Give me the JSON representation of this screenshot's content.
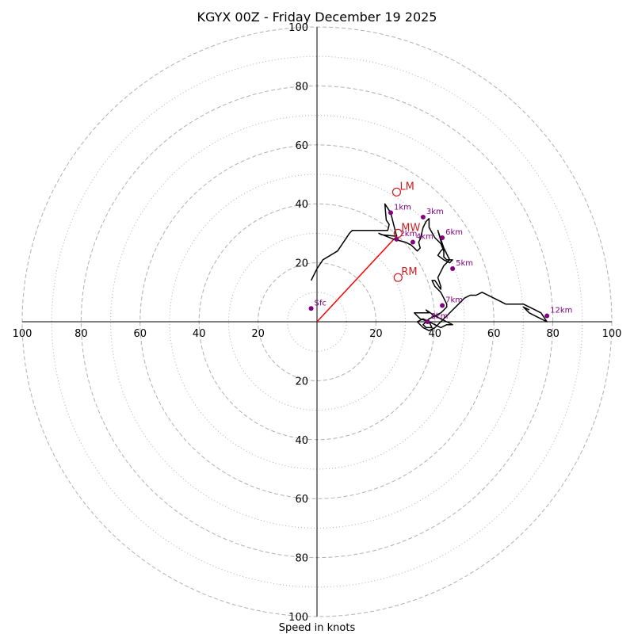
{
  "chart_data": {
    "type": "hodograph",
    "title": "KGYX 00Z - Friday December 19 2025",
    "xlabel": "Speed in knots",
    "axis_range": [
      -100,
      100
    ],
    "ticks": [
      {
        "value": -100,
        "label": "100"
      },
      {
        "value": -80,
        "label": "80"
      },
      {
        "value": -60,
        "label": "60"
      },
      {
        "value": -40,
        "label": "40"
      },
      {
        "value": -20,
        "label": "20"
      },
      {
        "value": 20,
        "label": "20"
      },
      {
        "value": 40,
        "label": "40"
      },
      {
        "value": 60,
        "label": "60"
      },
      {
        "value": 80,
        "label": "80"
      },
      {
        "value": 100,
        "label": "100"
      }
    ],
    "rings_dashed": [
      20,
      40,
      60,
      80,
      100
    ],
    "rings_dotted": [
      10,
      30,
      50,
      70,
      90
    ],
    "wind_profile": [
      [
        -2,
        14
      ],
      [
        0,
        18
      ],
      [
        2,
        21
      ],
      [
        7,
        24
      ],
      [
        11,
        30
      ],
      [
        12,
        31
      ],
      [
        24,
        31
      ],
      [
        24.5,
        33
      ],
      [
        23.5,
        34.5
      ],
      [
        23,
        40
      ],
      [
        25,
        37
      ],
      [
        27,
        29
      ],
      [
        22,
        29.5
      ],
      [
        21,
        30
      ],
      [
        26,
        28
      ],
      [
        30,
        27
      ],
      [
        32,
        26
      ],
      [
        34,
        24
      ],
      [
        35,
        25
      ],
      [
        34.5,
        27
      ],
      [
        35,
        28
      ],
      [
        36,
        32
      ],
      [
        37,
        34
      ],
      [
        38,
        35
      ],
      [
        38,
        32
      ],
      [
        40,
        28.5
      ],
      [
        42,
        26.5
      ],
      [
        43,
        24
      ],
      [
        43,
        22
      ],
      [
        44,
        21
      ],
      [
        46,
        21
      ],
      [
        45,
        20
      ],
      [
        43,
        21
      ],
      [
        41,
        22.5
      ],
      [
        42,
        24
      ],
      [
        43,
        25
      ],
      [
        42,
        28
      ],
      [
        41,
        31
      ],
      [
        42,
        27.5
      ],
      [
        43,
        25
      ],
      [
        45,
        21
      ],
      [
        43,
        19
      ],
      [
        41,
        15
      ],
      [
        42,
        12
      ],
      [
        42,
        11
      ],
      [
        40,
        14
      ],
      [
        39,
        14
      ],
      [
        40,
        12
      ],
      [
        42,
        10
      ],
      [
        43,
        8
      ],
      [
        44,
        6
      ],
      [
        44,
        5
      ],
      [
        43,
        4
      ],
      [
        42,
        3
      ],
      [
        40,
        2
      ],
      [
        38,
        1
      ],
      [
        37,
        0
      ],
      [
        36,
        -1
      ],
      [
        37,
        -2
      ],
      [
        39,
        -2
      ],
      [
        38,
        0
      ],
      [
        35,
        1
      ],
      [
        34,
        2
      ],
      [
        33,
        3
      ],
      [
        38,
        3
      ],
      [
        37,
        4
      ],
      [
        40,
        2
      ],
      [
        42,
        1
      ],
      [
        44,
        0
      ],
      [
        46,
        -1
      ],
      [
        44,
        -1
      ],
      [
        42,
        -2
      ],
      [
        40,
        -1
      ],
      [
        38,
        0
      ],
      [
        36,
        1
      ],
      [
        34,
        0
      ],
      [
        36,
        -2
      ],
      [
        38,
        -3
      ],
      [
        40,
        -2
      ],
      [
        42,
        0
      ],
      [
        44,
        2
      ],
      [
        46,
        4
      ],
      [
        48,
        6
      ],
      [
        50,
        8
      ],
      [
        52,
        9
      ],
      [
        54,
        9
      ],
      [
        56,
        10
      ],
      [
        60,
        8
      ],
      [
        64,
        6
      ],
      [
        68,
        6
      ],
      [
        70,
        6
      ],
      [
        74,
        4
      ],
      [
        76,
        3
      ],
      [
        78,
        0
      ],
      [
        76,
        1
      ],
      [
        72,
        3
      ],
      [
        70,
        5
      ],
      [
        72,
        4
      ]
    ],
    "height_markers": [
      {
        "label": "Sfc",
        "u": -2,
        "v": 4.5
      },
      {
        "label": "1km",
        "u": 25,
        "v": 37
      },
      {
        "label": "2km",
        "u": 27,
        "v": 28
      },
      {
        "label": "3km",
        "u": 36,
        "v": 35.5
      },
      {
        "label": "4km",
        "u": 32.5,
        "v": 27
      },
      {
        "label": "5km",
        "u": 46,
        "v": 18
      },
      {
        "label": "6km",
        "u": 42.5,
        "v": 28.5
      },
      {
        "label": "7km",
        "u": 42.5,
        "v": 5.5
      },
      {
        "label": "8km",
        "u": 37.5,
        "v": 0
      },
      {
        "label": "12km",
        "u": 78,
        "v": 2
      }
    ],
    "storm_motion": [
      {
        "label": "LM",
        "u": 27,
        "v": 44
      },
      {
        "label": "MW",
        "u": 27.5,
        "v": 30
      },
      {
        "label": "RM",
        "u": 27.5,
        "v": 15
      }
    ],
    "bunkers_vector": {
      "from": [
        0,
        0
      ],
      "to": [
        27,
        29
      ]
    },
    "colors": {
      "profile": "#000000",
      "marker": "#800080",
      "storm": "#cc1f1f",
      "vector": "#ff0000",
      "grid": "#b0b0b0"
    }
  }
}
